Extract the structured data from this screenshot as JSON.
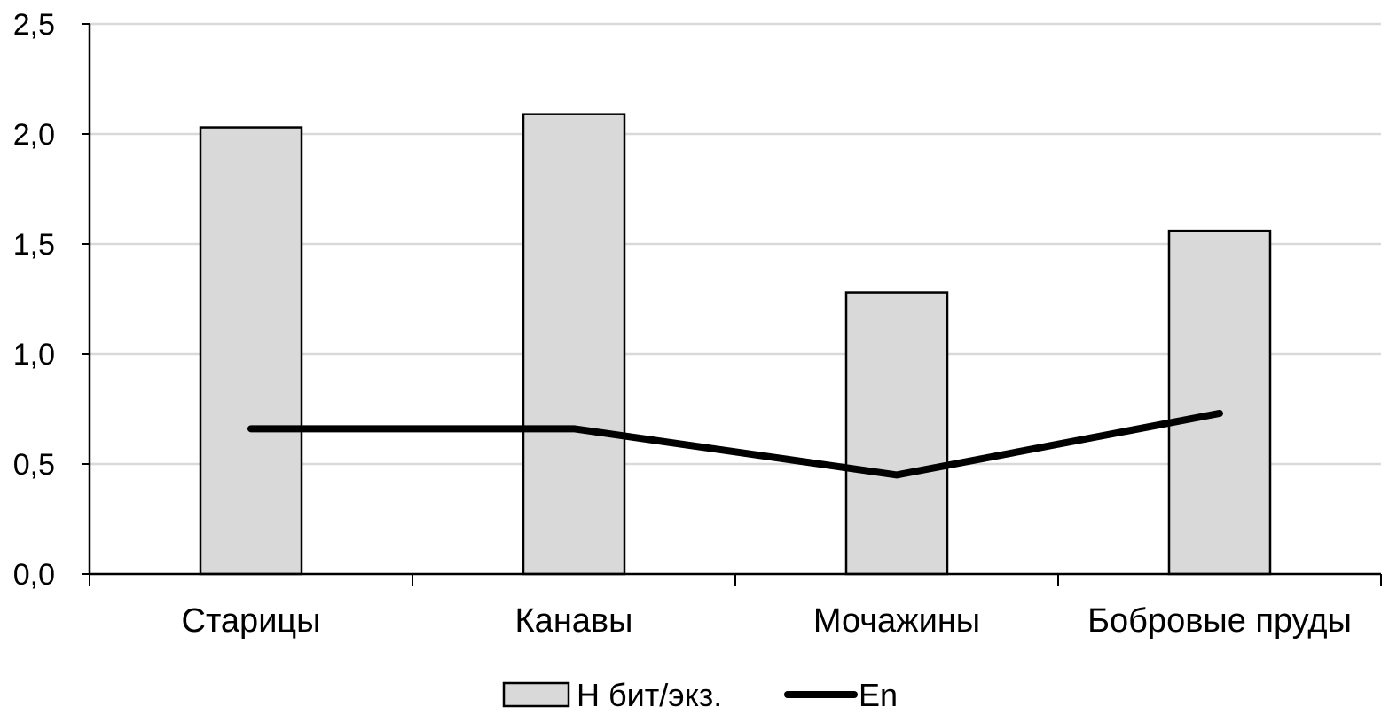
{
  "chart_data": {
    "type": "bar",
    "categories": [
      "Старицы",
      "Канавы",
      "Мочажины",
      "Бобровые пруды"
    ],
    "series": [
      {
        "name": "H бит/экз.",
        "type": "bar",
        "values": [
          2.03,
          2.09,
          1.28,
          1.56
        ]
      },
      {
        "name": "En",
        "type": "line",
        "values": [
          0.66,
          0.66,
          0.45,
          0.73
        ]
      }
    ],
    "ylim": [
      0,
      2.5
    ],
    "yticks": [
      "0,0",
      "0,5",
      "1,0",
      "1,5",
      "2,0",
      "2,5"
    ],
    "title": "",
    "xlabel": "",
    "ylabel": "",
    "grid": true,
    "legend_position": "bottom",
    "colors": {
      "bar_fill": "#d9d9d9",
      "bar_stroke": "#000000",
      "line": "#000000",
      "grid": "#d9d9d9",
      "axis": "#000000"
    }
  }
}
